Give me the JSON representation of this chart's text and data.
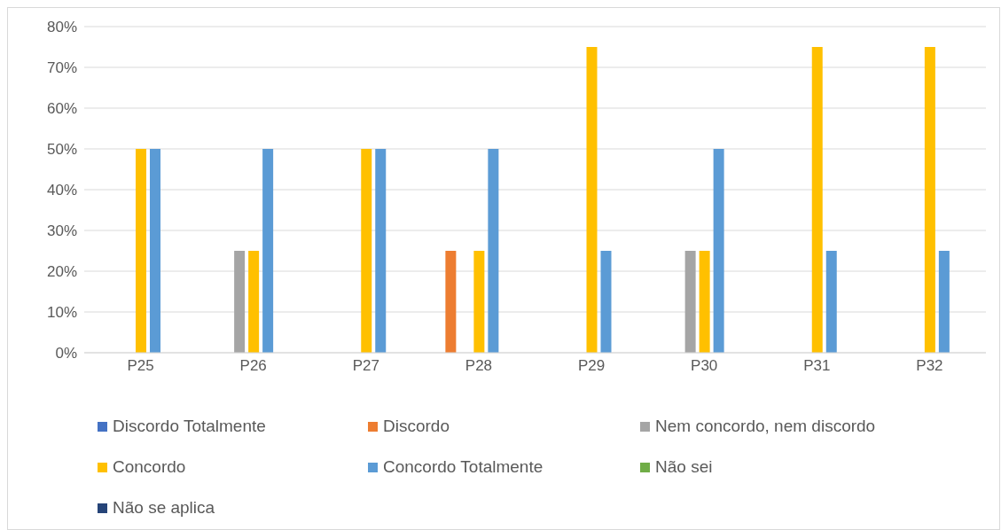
{
  "chart_data": {
    "type": "bar",
    "categories": [
      "P25",
      "P26",
      "P27",
      "P28",
      "P29",
      "P30",
      "P31",
      "P32"
    ],
    "series": [
      {
        "name": "Discordo Totalmente",
        "color": "#4472c4",
        "values": [
          0,
          0,
          0,
          0,
          0,
          0,
          0,
          0
        ]
      },
      {
        "name": "Discordo",
        "color": "#ed7d31",
        "values": [
          0,
          0,
          0,
          25,
          0,
          0,
          0,
          0
        ]
      },
      {
        "name": "Nem concordo, nem discordo",
        "color": "#a5a5a5",
        "values": [
          0,
          25,
          0,
          0,
          0,
          25,
          0,
          0
        ]
      },
      {
        "name": "Concordo",
        "color": "#ffc000",
        "values": [
          50,
          25,
          50,
          25,
          75,
          25,
          75,
          75
        ]
      },
      {
        "name": "Concordo Totalmente",
        "color": "#5b9bd5",
        "values": [
          50,
          50,
          50,
          50,
          25,
          50,
          25,
          25
        ]
      },
      {
        "name": "Não sei",
        "color": "#70ad47",
        "values": [
          0,
          0,
          0,
          0,
          0,
          0,
          0,
          0
        ]
      },
      {
        "name": "Não se aplica",
        "color": "#264478",
        "values": [
          0,
          0,
          0,
          0,
          0,
          0,
          0,
          0
        ]
      }
    ],
    "ylim": [
      0,
      80
    ],
    "yticks": [
      {
        "value": 0,
        "label": "0%"
      },
      {
        "value": 10,
        "label": "10%"
      },
      {
        "value": 20,
        "label": "20%"
      },
      {
        "value": 30,
        "label": "30%"
      },
      {
        "value": 40,
        "label": "40%"
      },
      {
        "value": 50,
        "label": "50%"
      },
      {
        "value": 60,
        "label": "60%"
      },
      {
        "value": 70,
        "label": "70%"
      },
      {
        "value": 80,
        "label": "80%"
      }
    ],
    "grid": "y",
    "legend": "bottom"
  }
}
